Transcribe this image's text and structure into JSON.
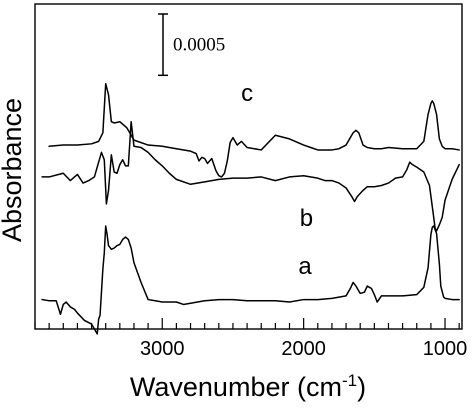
{
  "chart_data": {
    "type": "line",
    "xlabel": "Wavenumber (cm",
    "xlabel_sup": "-1",
    "xlabel_close": ")",
    "ylabel": "Absorbance",
    "xlim": [
      3900,
      880
    ],
    "x_reversed": true,
    "major_ticks": [
      3000,
      2000,
      1000
    ],
    "major_tick_labels": [
      "3000",
      "2000",
      "1000"
    ],
    "minor_tick_step": 100,
    "scale_bar": {
      "label": "0.0005",
      "value": 0.0005
    },
    "ylim": [
      -0.0009,
      0.00175
    ],
    "grid": false,
    "legend": "none",
    "series": [
      {
        "label": "c",
        "label_x": 2400,
        "label_y": 0.00096,
        "x": [
          3800,
          3700,
          3600,
          3500,
          3450,
          3420,
          3400,
          3380,
          3360,
          3340,
          3300,
          3250,
          3200,
          3100,
          3000,
          2900,
          2800,
          2760,
          2740,
          2720,
          2700,
          2680,
          2650,
          2620,
          2600,
          2580,
          2560,
          2540,
          2520,
          2500,
          2470,
          2440,
          2400,
          2300,
          2200,
          2100,
          2000,
          1950,
          1900,
          1800,
          1750,
          1700,
          1650,
          1630,
          1610,
          1580,
          1550,
          1500,
          1450,
          1400,
          1300,
          1200,
          1150,
          1120,
          1100,
          1090,
          1080,
          1060,
          1040,
          1020,
          1000,
          950,
          900
        ],
        "y": [
          0.00059,
          0.0006,
          0.0006,
          0.00061,
          0.00063,
          0.0007,
          0.0011,
          0.00101,
          0.00079,
          0.00078,
          0.00079,
          0.00074,
          0.00064,
          0.0006,
          0.00059,
          0.00057,
          0.00055,
          0.00053,
          0.00047,
          0.0005,
          0.00049,
          0.00045,
          0.00049,
          0.00039,
          0.00035,
          0.00034,
          0.00037,
          0.00047,
          0.00062,
          0.00066,
          0.0006,
          0.00063,
          0.00058,
          0.00056,
          0.00068,
          0.00065,
          0.0006,
          0.00058,
          0.00056,
          0.00056,
          0.00057,
          0.0006,
          0.0007,
          0.00072,
          0.0007,
          0.0006,
          0.00058,
          0.00057,
          0.00057,
          0.00058,
          0.00057,
          0.00057,
          0.00063,
          0.00085,
          0.00094,
          0.00096,
          0.00094,
          0.00085,
          0.00065,
          0.00059,
          0.00057,
          0.00057,
          0.00056
        ]
      },
      {
        "label": "b",
        "label_x": 1980,
        "label_y": -6e-05,
        "x": [
          3850,
          3800,
          3700,
          3650,
          3600,
          3560,
          3520,
          3480,
          3450,
          3430,
          3410,
          3395,
          3380,
          3360,
          3340,
          3320,
          3300,
          3280,
          3260,
          3240,
          3220,
          3200,
          3150,
          3100,
          3050,
          3000,
          2950,
          2900,
          2800,
          2700,
          2600,
          2500,
          2400,
          2300,
          2200,
          2100,
          2000,
          1900,
          1850,
          1800,
          1750,
          1700,
          1660,
          1640,
          1620,
          1580,
          1550,
          1500,
          1450,
          1400,
          1350,
          1300,
          1270,
          1250,
          1230,
          1200,
          1150,
          1110,
          1080,
          1070,
          1060,
          1040,
          1020,
          1000,
          950,
          900
        ],
        "y": [
          0.00034,
          0.00034,
          0.00037,
          0.00031,
          0.00036,
          0.00029,
          0.00031,
          0.00034,
          0.00046,
          0.00054,
          0.00048,
          0.00012,
          0.00023,
          0.00052,
          0.00038,
          0.00037,
          0.00044,
          0.00048,
          0.00043,
          0.00043,
          0.00079,
          0.00059,
          0.00058,
          0.00054,
          0.00048,
          0.00043,
          0.00037,
          0.00032,
          0.00028,
          0.0003,
          0.00032,
          0.00033,
          0.00033,
          0.00034,
          0.00031,
          0.00034,
          0.00035,
          0.00033,
          0.00031,
          0.00031,
          0.00029,
          0.00025,
          0.00018,
          0.00014,
          0.00018,
          0.00023,
          0.00026,
          0.00026,
          0.00027,
          0.00029,
          0.00033,
          0.00034,
          0.0004,
          0.00046,
          0.00044,
          0.00042,
          0.00038,
          0.00027,
          1e-05,
          -8e-05,
          -0.0001,
          -5e-05,
          1e-05,
          0.00015,
          0.00032,
          0.00044
        ]
      },
      {
        "label": "a",
        "label_x": 1990,
        "label_y": -0.00045,
        "x": [
          3850,
          3800,
          3750,
          3720,
          3710,
          3700,
          3680,
          3650,
          3620,
          3600,
          3550,
          3500,
          3460,
          3450,
          3440,
          3420,
          3410,
          3400,
          3390,
          3380,
          3360,
          3340,
          3320,
          3300,
          3280,
          3260,
          3240,
          3220,
          3200,
          3150,
          3100,
          3050,
          3000,
          2950,
          2900,
          2850,
          2800,
          2700,
          2600,
          2500,
          2400,
          2300,
          2200,
          2100,
          2000,
          1900,
          1800,
          1750,
          1700,
          1670,
          1650,
          1630,
          1600,
          1570,
          1550,
          1520,
          1500,
          1480,
          1450,
          1420,
          1400,
          1300,
          1200,
          1150,
          1120,
          1100,
          1090,
          1080,
          1060,
          1040,
          1030,
          1010,
          1000,
          950,
          900
        ],
        "y": [
          -0.00066,
          -0.00067,
          -0.00067,
          -0.00078,
          -0.00074,
          -0.0007,
          -0.00068,
          -0.00072,
          -0.00074,
          -0.00077,
          -0.00083,
          -0.00086,
          -0.00094,
          -0.00082,
          -0.00079,
          -0.00041,
          -0.00028,
          -6e-05,
          -0.00013,
          -0.00022,
          -0.00025,
          -0.00024,
          -0.00022,
          -0.00021,
          -0.00017,
          -0.00015,
          -0.00017,
          -0.00024,
          -0.00036,
          -0.00052,
          -0.00066,
          -0.00067,
          -0.00068,
          -0.00068,
          -0.00068,
          -0.0007,
          -0.00069,
          -0.00067,
          -0.00066,
          -0.00066,
          -0.00067,
          -0.00067,
          -0.00067,
          -0.00068,
          -0.00066,
          -0.00066,
          -0.00065,
          -0.00064,
          -0.00063,
          -0.00057,
          -0.00052,
          -0.00055,
          -0.00061,
          -0.0006,
          -0.00055,
          -0.00057,
          -0.00062,
          -0.00068,
          -0.00063,
          -0.00063,
          -0.00063,
          -0.00063,
          -0.00062,
          -0.00056,
          -0.0004,
          -0.00013,
          -7e-05,
          -6e-05,
          -0.00012,
          -0.00037,
          -0.00055,
          -0.00064,
          -0.00065,
          -0.00066,
          -0.00066
        ]
      }
    ]
  }
}
